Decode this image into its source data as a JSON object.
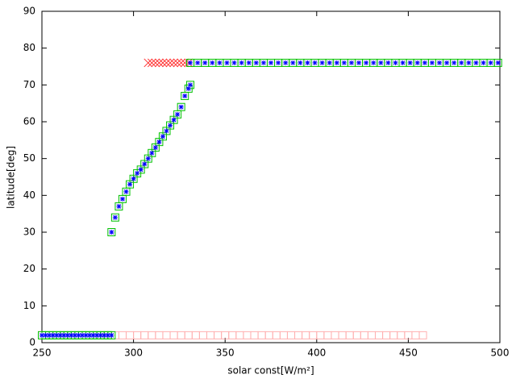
{
  "chart_data": {
    "type": "scatter",
    "x_label": "solar const[W/m²]",
    "y_label": "latitude[deg]",
    "xlim": [
      250,
      500
    ],
    "xticks": [
      250,
      300,
      350,
      400,
      450,
      500
    ],
    "ylim": [
      0,
      90
    ],
    "yticks": [
      0,
      10,
      20,
      30,
      40,
      50,
      60,
      70,
      80,
      90
    ],
    "series": [
      {
        "color": "#ffb0b0",
        "marker": "square",
        "x": [
          250,
          254,
          258,
          262,
          266,
          270,
          274,
          278,
          282,
          286,
          290,
          294,
          298,
          302,
          306,
          310,
          314,
          318,
          322,
          326,
          330,
          334,
          338,
          342,
          346,
          350,
          354,
          358,
          362,
          366,
          370,
          374,
          378,
          382,
          386,
          390,
          394,
          398,
          402,
          406,
          410,
          414,
          418,
          422,
          426,
          430,
          434,
          438,
          442,
          446,
          450,
          454,
          458
        ],
        "values": [
          2,
          2,
          2,
          2,
          2,
          2,
          2,
          2,
          2,
          2,
          2,
          2,
          2,
          2,
          2,
          2,
          2,
          2,
          2,
          2,
          2,
          2,
          2,
          2,
          2,
          2,
          2,
          2,
          2,
          2,
          2,
          2,
          2,
          2,
          2,
          2,
          2,
          2,
          2,
          2,
          2,
          2,
          2,
          2,
          2,
          2,
          2,
          2,
          2,
          2,
          2,
          2,
          2
        ]
      },
      {
        "color": "#ff3030",
        "marker": "x",
        "x": [
          308,
          310,
          312,
          314,
          316,
          318,
          320,
          322,
          324,
          326,
          328,
          330
        ],
        "values": [
          76,
          76,
          76,
          76,
          76,
          76,
          76,
          76,
          76,
          76,
          76,
          76
        ]
      },
      {
        "color": "#00c000",
        "marker": "square",
        "x": [
          250,
          252,
          254,
          256,
          258,
          260,
          262,
          264,
          266,
          268,
          270,
          272,
          274,
          276,
          278,
          280,
          282,
          284,
          286,
          288,
          288,
          290,
          292,
          294,
          296,
          298,
          300,
          302,
          304,
          306,
          308,
          310,
          312,
          314,
          316,
          318,
          320,
          322,
          324,
          326,
          328,
          330,
          331,
          331,
          335,
          339,
          343,
          347,
          351,
          355,
          359,
          363,
          367,
          371,
          375,
          379,
          383,
          387,
          391,
          395,
          399,
          403,
          407,
          411,
          415,
          419,
          423,
          427,
          431,
          435,
          439,
          443,
          447,
          451,
          455,
          459,
          463,
          467,
          471,
          475,
          479,
          483,
          487,
          491,
          495,
          499
        ],
        "values": [
          2,
          2,
          2,
          2,
          2,
          2,
          2,
          2,
          2,
          2,
          2,
          2,
          2,
          2,
          2,
          2,
          2,
          2,
          2,
          2,
          30,
          34,
          37,
          39,
          41,
          43,
          44.5,
          46,
          47,
          48.5,
          50,
          51.5,
          53,
          54.5,
          56,
          57.5,
          59,
          60.5,
          62,
          64,
          67,
          69,
          70,
          76,
          76,
          76,
          76,
          76,
          76,
          76,
          76,
          76,
          76,
          76,
          76,
          76,
          76,
          76,
          76,
          76,
          76,
          76,
          76,
          76,
          76,
          76,
          76,
          76,
          76,
          76,
          76,
          76,
          76,
          76,
          76,
          76,
          76,
          76,
          76,
          76,
          76,
          76,
          76,
          76,
          76,
          76
        ]
      },
      {
        "color": "#0000ff",
        "marker": "star",
        "x": [
          250,
          252,
          254,
          256,
          258,
          260,
          262,
          264,
          266,
          268,
          270,
          272,
          274,
          276,
          278,
          280,
          282,
          284,
          286,
          288,
          288,
          290,
          292,
          294,
          296,
          298,
          300,
          302,
          304,
          306,
          308,
          310,
          312,
          314,
          316,
          318,
          320,
          322,
          324,
          326,
          328,
          330,
          331,
          331,
          335,
          339,
          343,
          347,
          351,
          355,
          359,
          363,
          367,
          371,
          375,
          379,
          383,
          387,
          391,
          395,
          399,
          403,
          407,
          411,
          415,
          419,
          423,
          427,
          431,
          435,
          439,
          443,
          447,
          451,
          455,
          459,
          463,
          467,
          471,
          475,
          479,
          483,
          487,
          491,
          495,
          499
        ],
        "values": [
          2,
          2,
          2,
          2,
          2,
          2,
          2,
          2,
          2,
          2,
          2,
          2,
          2,
          2,
          2,
          2,
          2,
          2,
          2,
          2,
          30,
          34,
          37,
          39,
          41,
          43,
          44.5,
          46,
          47,
          48.5,
          50,
          51.5,
          53,
          54.5,
          56,
          57.5,
          59,
          60.5,
          62,
          64,
          67,
          69,
          70,
          76,
          76,
          76,
          76,
          76,
          76,
          76,
          76,
          76,
          76,
          76,
          76,
          76,
          76,
          76,
          76,
          76,
          76,
          76,
          76,
          76,
          76,
          76,
          76,
          76,
          76,
          76,
          76,
          76,
          76,
          76,
          76,
          76,
          76,
          76,
          76,
          76,
          76,
          76,
          76,
          76,
          76,
          76
        ]
      }
    ]
  }
}
